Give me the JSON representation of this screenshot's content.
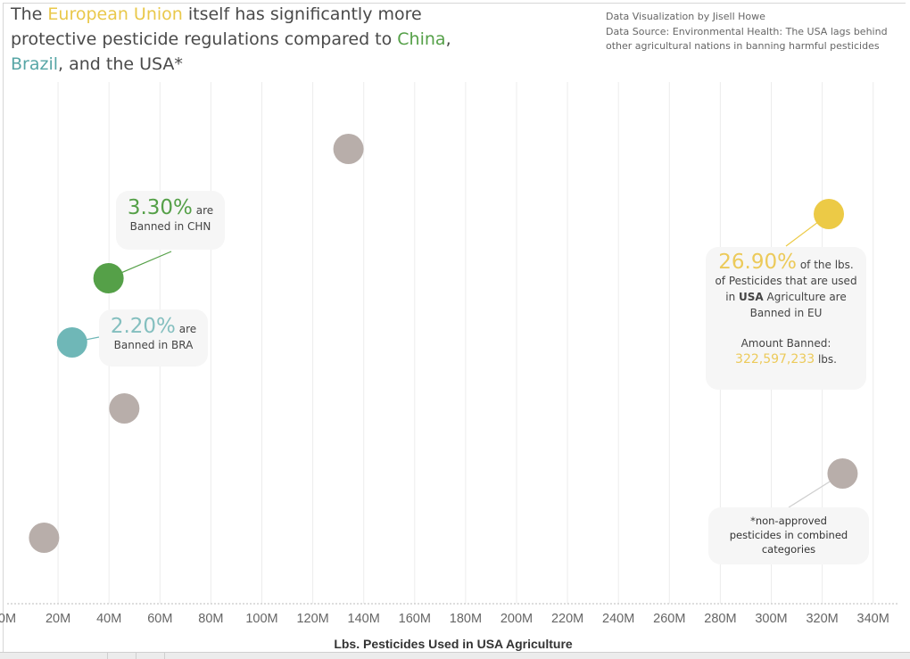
{
  "title": {
    "p1": "The ",
    "eu": "European Union",
    "p2": " itself has significantly more protective pesticide regulations compared to ",
    "cn": "China",
    "p3": ", ",
    "br": "Brazil",
    "p4": ", and the USA*"
  },
  "credits": {
    "line1": "Data Visualization by Jisell Howe",
    "line2": "Data Source: Environmental Health: The USA lags behind",
    "line3": "other agricultural nations in banning harmful pesticides"
  },
  "callouts": {
    "china": {
      "pct": "3.30%",
      "suffix": "are",
      "sub": "Banned in CHN"
    },
    "brazil": {
      "pct": "2.20%",
      "suffix": "are",
      "sub": "Banned in BRA"
    },
    "eu": {
      "pct": "26.90%",
      "suffix": "of the lbs.",
      "line2": "of Pesticides that are used",
      "line3a": "in ",
      "line3b": "USA",
      "line3c": " Agriculture are",
      "line4": "Banned in EU",
      "amount_label": "Amount Banned:",
      "amount": "322,597,233",
      "amount_unit": "lbs."
    },
    "note": {
      "line1": "*non-approved",
      "line2": "pesticides in combined",
      "line3": "categories"
    }
  },
  "colors": {
    "eu": "#ecca46",
    "china": "#55a048",
    "brazil": "#6fb7b7",
    "other": "#b8aeaa",
    "grid": "#ececec"
  },
  "chart_data": {
    "type": "scatter",
    "xlabel": "Lbs. Pesticides Used in USA Agriculture",
    "ylabel": "",
    "xlim": [
      0,
      350000000
    ],
    "x_tick_labels": [
      "0M",
      "20M",
      "40M",
      "60M",
      "80M",
      "100M",
      "120M",
      "140M",
      "160M",
      "180M",
      "200M",
      "220M",
      "240M",
      "260M",
      "280M",
      "300M",
      "320M",
      "340M"
    ],
    "x_ticks": [
      0,
      20000000,
      40000000,
      60000000,
      80000000,
      100000000,
      120000000,
      140000000,
      160000000,
      180000000,
      200000000,
      220000000,
      240000000,
      260000000,
      280000000,
      300000000,
      320000000,
      340000000
    ],
    "grid": true,
    "points": [
      {
        "name": "",
        "x": 134000000,
        "group": "other"
      },
      {
        "name": "EU",
        "x": 322597233,
        "group": "eu"
      },
      {
        "name": "CHN",
        "x": 39800000,
        "group": "china"
      },
      {
        "name": "BRA",
        "x": 25500000,
        "group": "brazil"
      },
      {
        "name": "",
        "x": 46000000,
        "group": "other"
      },
      {
        "name": "",
        "x": 328000000,
        "group": "other"
      },
      {
        "name": "",
        "x": 14500000,
        "group": "other"
      }
    ]
  }
}
